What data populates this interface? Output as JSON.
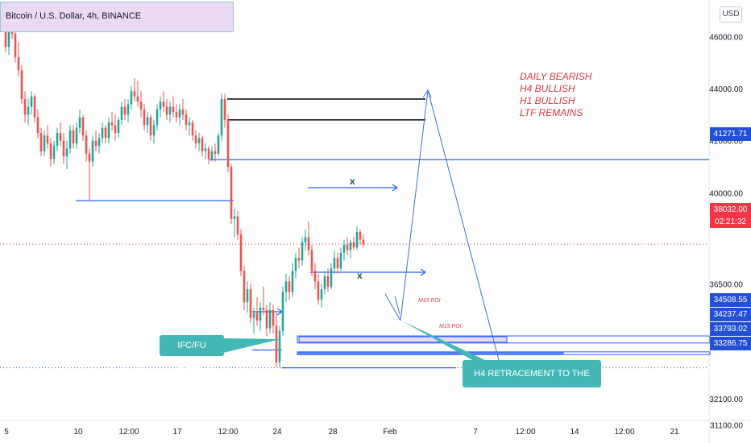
{
  "header": {
    "title": "Bitcoin / U.S. Dollar, 4h, BINANCE",
    "currency_button": "USD"
  },
  "bias_notes": [
    "DAILY BEARISH",
    "H4 BULLISH",
    "H1 BULLISH",
    "LTF REMAINS"
  ],
  "callouts": {
    "ifc_candle": "IFC/FU CANDLE",
    "h4_retracement": "H4 RETRACEMENT TO THE UPSIDE"
  },
  "poi_labels": [
    "M15 POI",
    "M15 POI"
  ],
  "x_marks": [
    "x",
    "x"
  ],
  "price_tags": [
    {
      "value": "41271.71",
      "price": 41271.71,
      "style": "blue"
    },
    {
      "value": "38032.00",
      "price": 38032.0,
      "style": "red"
    },
    {
      "value": "02:21:32",
      "price": 37640,
      "style": "red2"
    },
    {
      "value": "34508.55",
      "price": 34508.55,
      "style": "blue"
    },
    {
      "value": "34237.47",
      "price": 34237.47,
      "style": "blue"
    },
    {
      "value": "33793.02",
      "price": 33793.02,
      "style": "blue"
    },
    {
      "value": "33286.75",
      "price": 33286.75,
      "style": "blue"
    }
  ],
  "colors": {
    "up": "#26a69a",
    "down": "#ef5350",
    "level_line": "#2962ff",
    "poi_fill": "#ead9f2",
    "callout": "#43b6b6",
    "bias_text": "#e0363d"
  },
  "chart_data": {
    "type": "candlestick",
    "title": "Bitcoin / U.S. Dollar, 4h, BINANCE",
    "y_axis": {
      "ticks": [
        "46000.00",
        "44000.00",
        "42000.00",
        "40000.00",
        "36500.00",
        "35300.00",
        "32100.00",
        "31100.00"
      ],
      "ylim": [
        30400,
        47400
      ]
    },
    "x_axis": {
      "ticks": [
        "5",
        "10",
        "12:00",
        "17",
        "12:00",
        "24",
        "28",
        "Feb",
        "7",
        "12:00",
        "14",
        "12:00",
        "21"
      ]
    },
    "candles": [
      {
        "o": 46500,
        "h": 47000,
        "l": 46200,
        "c": 46700
      },
      {
        "o": 46700,
        "h": 47100,
        "l": 45400,
        "c": 45600
      },
      {
        "o": 45600,
        "h": 46900,
        "l": 45300,
        "c": 46600
      },
      {
        "o": 46600,
        "h": 46800,
        "l": 45900,
        "c": 46100
      },
      {
        "o": 46100,
        "h": 46300,
        "l": 45000,
        "c": 45200
      },
      {
        "o": 45200,
        "h": 45800,
        "l": 44500,
        "c": 44700
      },
      {
        "o": 44700,
        "h": 44900,
        "l": 43400,
        "c": 43600
      },
      {
        "o": 43600,
        "h": 43900,
        "l": 42700,
        "c": 43000
      },
      {
        "o": 43000,
        "h": 43600,
        "l": 42600,
        "c": 43300
      },
      {
        "o": 43300,
        "h": 43900,
        "l": 43000,
        "c": 43700
      },
      {
        "o": 43700,
        "h": 43800,
        "l": 42700,
        "c": 42900
      },
      {
        "o": 42900,
        "h": 43200,
        "l": 42100,
        "c": 42300
      },
      {
        "o": 42300,
        "h": 42500,
        "l": 41400,
        "c": 41600
      },
      {
        "o": 41600,
        "h": 42400,
        "l": 41400,
        "c": 42200
      },
      {
        "o": 42200,
        "h": 42600,
        "l": 41700,
        "c": 41900
      },
      {
        "o": 41900,
        "h": 42100,
        "l": 41000,
        "c": 41300
      },
      {
        "o": 41300,
        "h": 42000,
        "l": 41100,
        "c": 41800
      },
      {
        "o": 41800,
        "h": 42500,
        "l": 41600,
        "c": 42300
      },
      {
        "o": 42300,
        "h": 42700,
        "l": 41800,
        "c": 42000
      },
      {
        "o": 42000,
        "h": 42300,
        "l": 41100,
        "c": 41400
      },
      {
        "o": 41400,
        "h": 42000,
        "l": 40900,
        "c": 41700
      },
      {
        "o": 41700,
        "h": 42600,
        "l": 41500,
        "c": 42400
      },
      {
        "o": 42400,
        "h": 42600,
        "l": 41700,
        "c": 41900
      },
      {
        "o": 41900,
        "h": 42700,
        "l": 41700,
        "c": 42500
      },
      {
        "o": 42500,
        "h": 43200,
        "l": 42300,
        "c": 42900
      },
      {
        "o": 42900,
        "h": 43000,
        "l": 42000,
        "c": 42200
      },
      {
        "o": 42200,
        "h": 42400,
        "l": 41200,
        "c": 41500
      },
      {
        "o": 41500,
        "h": 41700,
        "l": 39700,
        "c": 41200
      },
      {
        "o": 41200,
        "h": 42200,
        "l": 41000,
        "c": 42000
      },
      {
        "o": 42000,
        "h": 42400,
        "l": 41600,
        "c": 41800
      },
      {
        "o": 41800,
        "h": 42300,
        "l": 41500,
        "c": 42100
      },
      {
        "o": 42100,
        "h": 42700,
        "l": 41900,
        "c": 42500
      },
      {
        "o": 42500,
        "h": 42600,
        "l": 41900,
        "c": 42100
      },
      {
        "o": 42100,
        "h": 42900,
        "l": 41900,
        "c": 42700
      },
      {
        "o": 42700,
        "h": 43100,
        "l": 42400,
        "c": 42600
      },
      {
        "o": 42600,
        "h": 43000,
        "l": 42000,
        "c": 42300
      },
      {
        "o": 42300,
        "h": 42900,
        "l": 42100,
        "c": 42800
      },
      {
        "o": 42800,
        "h": 43500,
        "l": 42600,
        "c": 43300
      },
      {
        "o": 43300,
        "h": 43600,
        "l": 42800,
        "c": 43000
      },
      {
        "o": 43000,
        "h": 43600,
        "l": 42700,
        "c": 43400
      },
      {
        "o": 43400,
        "h": 44100,
        "l": 43200,
        "c": 43900
      },
      {
        "o": 43900,
        "h": 44400,
        "l": 43500,
        "c": 43700
      },
      {
        "o": 43700,
        "h": 44300,
        "l": 43300,
        "c": 43500
      },
      {
        "o": 43500,
        "h": 43900,
        "l": 42900,
        "c": 43200
      },
      {
        "o": 43200,
        "h": 43400,
        "l": 42400,
        "c": 42600
      },
      {
        "o": 42600,
        "h": 43100,
        "l": 42300,
        "c": 42900
      },
      {
        "o": 42900,
        "h": 43000,
        "l": 42000,
        "c": 42200
      },
      {
        "o": 42200,
        "h": 42800,
        "l": 41900,
        "c": 42600
      },
      {
        "o": 42600,
        "h": 43400,
        "l": 42400,
        "c": 43200
      },
      {
        "o": 43200,
        "h": 43700,
        "l": 42900,
        "c": 43500
      },
      {
        "o": 43500,
        "h": 43900,
        "l": 43100,
        "c": 43300
      },
      {
        "o": 43300,
        "h": 43600,
        "l": 42800,
        "c": 43000
      },
      {
        "o": 43000,
        "h": 43500,
        "l": 42700,
        "c": 43300
      },
      {
        "o": 43300,
        "h": 43700,
        "l": 42900,
        "c": 43100
      },
      {
        "o": 43100,
        "h": 43400,
        "l": 42700,
        "c": 42900
      },
      {
        "o": 42900,
        "h": 43400,
        "l": 42600,
        "c": 43200
      },
      {
        "o": 43200,
        "h": 43600,
        "l": 42800,
        "c": 43000
      },
      {
        "o": 43000,
        "h": 43200,
        "l": 42400,
        "c": 42600
      },
      {
        "o": 42600,
        "h": 42900,
        "l": 42200,
        "c": 42700
      },
      {
        "o": 42700,
        "h": 42800,
        "l": 42000,
        "c": 42200
      },
      {
        "o": 42200,
        "h": 42400,
        "l": 41700,
        "c": 41900
      },
      {
        "o": 41900,
        "h": 42300,
        "l": 41600,
        "c": 42100
      },
      {
        "o": 42100,
        "h": 42200,
        "l": 41400,
        "c": 41600
      },
      {
        "o": 41600,
        "h": 41900,
        "l": 41300,
        "c": 41700
      },
      {
        "o": 41700,
        "h": 41800,
        "l": 41100,
        "c": 41300
      },
      {
        "o": 41300,
        "h": 41800,
        "l": 41200,
        "c": 41600
      },
      {
        "o": 41600,
        "h": 41900,
        "l": 41200,
        "c": 41500
      },
      {
        "o": 41500,
        "h": 42300,
        "l": 41400,
        "c": 42200
      },
      {
        "o": 42200,
        "h": 43800,
        "l": 42000,
        "c": 43600
      },
      {
        "o": 43600,
        "h": 43800,
        "l": 42500,
        "c": 42800
      },
      {
        "o": 42800,
        "h": 43000,
        "l": 40800,
        "c": 41000
      },
      {
        "o": 41000,
        "h": 41100,
        "l": 38800,
        "c": 39000
      },
      {
        "o": 39000,
        "h": 39400,
        "l": 38300,
        "c": 39100
      },
      {
        "o": 39100,
        "h": 39300,
        "l": 38200,
        "c": 38400
      },
      {
        "o": 38400,
        "h": 38600,
        "l": 36800,
        "c": 37000
      },
      {
        "o": 37000,
        "h": 37200,
        "l": 35500,
        "c": 35800
      },
      {
        "o": 35800,
        "h": 36600,
        "l": 35400,
        "c": 36300
      },
      {
        "o": 36300,
        "h": 36500,
        "l": 35000,
        "c": 35200
      },
      {
        "o": 35200,
        "h": 35600,
        "l": 34600,
        "c": 35400
      },
      {
        "o": 35400,
        "h": 36000,
        "l": 34900,
        "c": 35100
      },
      {
        "o": 35100,
        "h": 35800,
        "l": 34700,
        "c": 35600
      },
      {
        "o": 35600,
        "h": 36400,
        "l": 35300,
        "c": 35500
      },
      {
        "o": 35500,
        "h": 35700,
        "l": 34500,
        "c": 34800
      },
      {
        "o": 34800,
        "h": 35800,
        "l": 34600,
        "c": 35500
      },
      {
        "o": 35500,
        "h": 35700,
        "l": 34600,
        "c": 34900
      },
      {
        "o": 34900,
        "h": 35400,
        "l": 33300,
        "c": 33500
      },
      {
        "o": 33500,
        "h": 34900,
        "l": 33300,
        "c": 34700
      },
      {
        "o": 34700,
        "h": 36400,
        "l": 34500,
        "c": 36200
      },
      {
        "o": 36200,
        "h": 36900,
        "l": 35800,
        "c": 36600
      },
      {
        "o": 36600,
        "h": 36800,
        "l": 35900,
        "c": 36200
      },
      {
        "o": 36200,
        "h": 37300,
        "l": 36000,
        "c": 37000
      },
      {
        "o": 37000,
        "h": 37700,
        "l": 36700,
        "c": 37500
      },
      {
        "o": 37500,
        "h": 37900,
        "l": 37100,
        "c": 37400
      },
      {
        "o": 37400,
        "h": 38300,
        "l": 37200,
        "c": 38100
      },
      {
        "o": 38100,
        "h": 38600,
        "l": 37800,
        "c": 38300
      },
      {
        "o": 38300,
        "h": 38900,
        "l": 37600,
        "c": 37800
      },
      {
        "o": 37800,
        "h": 38000,
        "l": 36800,
        "c": 37000
      },
      {
        "o": 37000,
        "h": 37300,
        "l": 36300,
        "c": 36600
      },
      {
        "o": 36600,
        "h": 36900,
        "l": 35700,
        "c": 35900
      },
      {
        "o": 35900,
        "h": 36500,
        "l": 35600,
        "c": 36300
      },
      {
        "o": 36300,
        "h": 37000,
        "l": 36100,
        "c": 36800
      },
      {
        "o": 36800,
        "h": 37100,
        "l": 36200,
        "c": 36400
      },
      {
        "o": 36400,
        "h": 37300,
        "l": 36300,
        "c": 37100
      },
      {
        "o": 37100,
        "h": 37800,
        "l": 36900,
        "c": 37500
      },
      {
        "o": 37500,
        "h": 37700,
        "l": 36900,
        "c": 37100
      },
      {
        "o": 37100,
        "h": 37900,
        "l": 37000,
        "c": 37700
      },
      {
        "o": 37700,
        "h": 38200,
        "l": 37400,
        "c": 38000
      },
      {
        "o": 38000,
        "h": 38300,
        "l": 37600,
        "c": 37800
      },
      {
        "o": 37800,
        "h": 38200,
        "l": 37500,
        "c": 38100
      },
      {
        "o": 38100,
        "h": 38300,
        "l": 37800,
        "c": 37900
      },
      {
        "o": 37900,
        "h": 38700,
        "l": 37800,
        "c": 38500
      },
      {
        "o": 38500,
        "h": 38600,
        "l": 38000,
        "c": 38200
      },
      {
        "o": 38200,
        "h": 38400,
        "l": 37900,
        "c": 38032
      }
    ],
    "levels": [
      {
        "name": "black-line-high",
        "price": 43600,
        "from_index": 68,
        "to": "arrow"
      },
      {
        "name": "black-line-low",
        "price": 42800,
        "from_index": 68,
        "to": "arrow"
      },
      {
        "name": "blue-line-41271",
        "price": 41271.71,
        "from_index": 65,
        "to": "axis"
      },
      {
        "name": "blue-line-39700",
        "price": 39700,
        "from_index": 23,
        "to_index": 71
      },
      {
        "name": "dotted-38032",
        "price": 38032,
        "style": "dotted-red"
      },
      {
        "name": "dotted-33286",
        "price": 33286.75,
        "style": "dotted-blue"
      }
    ]
  }
}
